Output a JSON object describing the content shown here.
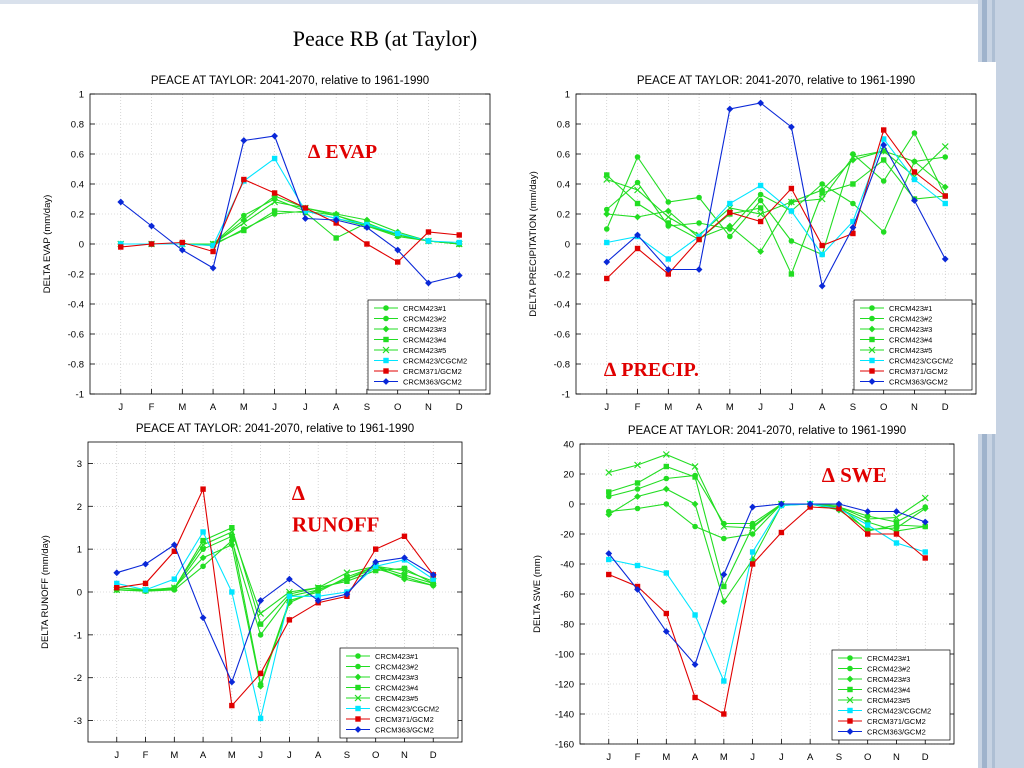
{
  "slide": {
    "title": "Peace RB (at Taylor)"
  },
  "colors": {
    "green": "#22dd22",
    "cyan": "#00e5ff",
    "red": "#e00000",
    "blue": "#0a28d8",
    "annotation": "#e00000"
  },
  "chart_data": [
    {
      "type": "line",
      "title": "PEACE AT TAYLOR: 2041-2070, relative to 1961-1990",
      "ylabel": "DELTA EVAP (mm/day)",
      "annotation": "∆ EVAP",
      "categories": [
        "J",
        "F",
        "M",
        "A",
        "M",
        "J",
        "J",
        "A",
        "S",
        "O",
        "N",
        "D"
      ],
      "ylim": [
        -1,
        1
      ],
      "yticks": [
        -1,
        -0.8,
        -0.6,
        -0.4,
        -0.2,
        0,
        0.2,
        0.4,
        0.6,
        0.8,
        1
      ],
      "ytick_labels": [
        "-1",
        "-0.8",
        "-0.6",
        "-0.4",
        "-0.2",
        "0",
        "0.2",
        "0.4",
        "0.6",
        "0.8",
        "1"
      ],
      "grid": true,
      "legend_position": "bottom-right",
      "series": [
        {
          "name": "CRCM423#1",
          "color": "green",
          "marker": "circle",
          "values": [
            0.0,
            0.0,
            0.0,
            0.0,
            0.19,
            0.3,
            0.22,
            0.19,
            0.13,
            0.06,
            0.02,
            0.0
          ]
        },
        {
          "name": "CRCM423#2",
          "color": "green",
          "marker": "circle",
          "values": [
            0.0,
            0.0,
            0.0,
            -0.01,
            0.1,
            0.2,
            0.22,
            0.17,
            0.12,
            0.05,
            0.02,
            0.0
          ]
        },
        {
          "name": "CRCM423#3",
          "color": "green",
          "marker": "diamond",
          "values": [
            0.0,
            0.0,
            0.0,
            0.0,
            0.16,
            0.32,
            0.24,
            0.2,
            0.16,
            0.08,
            0.02,
            0.0
          ]
        },
        {
          "name": "CRCM423#4",
          "color": "green",
          "marker": "square",
          "values": [
            0.0,
            0.0,
            0.0,
            0.0,
            0.09,
            0.22,
            0.21,
            0.04,
            0.14,
            0.06,
            0.02,
            0.0
          ]
        },
        {
          "name": "CRCM423#5",
          "color": "green",
          "marker": "x",
          "values": [
            0.0,
            0.0,
            0.0,
            0.0,
            0.14,
            0.28,
            0.24,
            0.19,
            0.12,
            0.06,
            0.02,
            0.0
          ]
        },
        {
          "name": "CRCM423/CGCM2",
          "color": "cyan",
          "marker": "square",
          "values": [
            0.0,
            0.0,
            0.0,
            -0.01,
            0.42,
            0.57,
            0.22,
            0.17,
            0.13,
            0.07,
            0.02,
            0.01
          ]
        },
        {
          "name": "CRCM371/GCM2",
          "color": "red",
          "marker": "square",
          "values": [
            -0.02,
            0.0,
            0.01,
            -0.05,
            0.43,
            0.34,
            0.24,
            0.14,
            0.0,
            -0.12,
            0.08,
            0.06
          ]
        },
        {
          "name": "CRCM363/GCM2",
          "color": "blue",
          "marker": "diamond",
          "values": [
            0.28,
            0.12,
            -0.04,
            -0.16,
            0.69,
            0.72,
            0.17,
            0.16,
            0.11,
            -0.04,
            -0.26,
            -0.21
          ]
        }
      ]
    },
    {
      "type": "line",
      "title": "PEACE AT TAYLOR: 2041-2070, relative to 1961-1990",
      "ylabel": "DELTA PRECIPITATION (mm/day)",
      "annotation": "∆ PRECIP.",
      "categories": [
        "J",
        "F",
        "M",
        "A",
        "M",
        "J",
        "J",
        "A",
        "S",
        "O",
        "N",
        "D"
      ],
      "ylim": [
        -1,
        1
      ],
      "yticks": [
        -1,
        -0.8,
        -0.6,
        -0.4,
        -0.2,
        0,
        0.2,
        0.4,
        0.6,
        0.8,
        1
      ],
      "ytick_labels": [
        "-1",
        "-0.8",
        "-0.6",
        "-0.4",
        "-0.2",
        "0",
        "0.2",
        "0.4",
        "0.6",
        "0.8",
        "1"
      ],
      "grid": true,
      "legend_position": "bottom-right",
      "series": [
        {
          "name": "CRCM423#1",
          "color": "green",
          "marker": "circle",
          "values": [
            0.23,
            0.41,
            0.12,
            0.14,
            0.1,
            0.33,
            0.22,
            0.4,
            0.27,
            0.08,
            0.55,
            0.58
          ]
        },
        {
          "name": "CRCM423#2",
          "color": "green",
          "marker": "circle",
          "values": [
            0.1,
            0.58,
            0.28,
            0.31,
            0.05,
            0.29,
            0.02,
            -0.07,
            0.6,
            0.42,
            0.74,
            0.32
          ]
        },
        {
          "name": "CRCM423#3",
          "color": "green",
          "marker": "diamond",
          "values": [
            0.2,
            0.18,
            0.22,
            0.04,
            0.12,
            -0.05,
            0.28,
            0.36,
            0.56,
            0.62,
            0.55,
            0.38
          ]
        },
        {
          "name": "CRCM423#4",
          "color": "green",
          "marker": "square",
          "values": [
            0.46,
            0.27,
            0.14,
            0.03,
            0.2,
            0.24,
            -0.2,
            0.34,
            0.4,
            0.56,
            0.3,
            0.32
          ]
        },
        {
          "name": "CRCM423#5",
          "color": "green",
          "marker": "x",
          "values": [
            0.43,
            0.36,
            0.18,
            0.06,
            0.24,
            0.2,
            0.28,
            0.3,
            0.58,
            0.62,
            0.45,
            0.65
          ]
        },
        {
          "name": "CRCM423/CGCM2",
          "color": "cyan",
          "marker": "square",
          "values": [
            0.01,
            0.05,
            -0.1,
            0.05,
            0.27,
            0.39,
            0.22,
            -0.07,
            0.15,
            0.7,
            0.43,
            0.27
          ]
        },
        {
          "name": "CRCM371/GCM2",
          "color": "red",
          "marker": "square",
          "values": [
            -0.23,
            -0.03,
            -0.2,
            0.03,
            0.21,
            0.15,
            0.37,
            -0.01,
            0.07,
            0.76,
            0.48,
            0.32
          ]
        },
        {
          "name": "CRCM363/GCM2",
          "color": "blue",
          "marker": "diamond",
          "values": [
            -0.12,
            0.06,
            -0.17,
            -0.17,
            0.9,
            0.94,
            0.78,
            -0.28,
            0.11,
            0.66,
            0.29,
            -0.1
          ]
        }
      ]
    },
    {
      "type": "line",
      "title": "PEACE AT TAYLOR: 2041-2070, relative to 1961-1990",
      "ylabel": "DELTA RUNOFF (mm/day)",
      "annotation": "∆ RUNOFF",
      "categories": [
        "J",
        "F",
        "M",
        "A",
        "M",
        "J",
        "J",
        "A",
        "S",
        "O",
        "N",
        "D"
      ],
      "ylim": [
        -3.5,
        3.5
      ],
      "yticks": [
        -3,
        -2,
        -1,
        0,
        1,
        2,
        3
      ],
      "ytick_labels": [
        "-3",
        "-2",
        "-1",
        "0",
        "1",
        "2",
        "3"
      ],
      "grid": true,
      "legend_position": "bottom-right",
      "series": [
        {
          "name": "CRCM423#1",
          "color": "green",
          "marker": "circle",
          "values": [
            0.05,
            0.04,
            0.07,
            1.0,
            1.3,
            -2.15,
            -0.2,
            0.0,
            0.35,
            0.6,
            0.4,
            0.2
          ]
        },
        {
          "name": "CRCM423#2",
          "color": "green",
          "marker": "circle",
          "values": [
            0.05,
            0.02,
            0.05,
            0.6,
            1.2,
            -1.0,
            -0.1,
            0.05,
            0.3,
            0.55,
            0.35,
            0.15
          ]
        },
        {
          "name": "CRCM423#3",
          "color": "green",
          "marker": "diamond",
          "values": [
            0.05,
            0.03,
            0.1,
            0.8,
            1.1,
            -2.2,
            -0.25,
            0.05,
            0.3,
            0.6,
            0.3,
            0.15
          ]
        },
        {
          "name": "CRCM423#4",
          "color": "green",
          "marker": "square",
          "values": [
            0.1,
            0.05,
            0.08,
            1.2,
            1.5,
            -0.75,
            -0.05,
            0.1,
            0.25,
            0.5,
            0.55,
            0.2
          ]
        },
        {
          "name": "CRCM423#5",
          "color": "green",
          "marker": "x",
          "values": [
            0.05,
            0.04,
            0.1,
            1.1,
            1.4,
            -0.5,
            0.0,
            0.1,
            0.45,
            0.6,
            0.5,
            0.25
          ]
        },
        {
          "name": "CRCM423/CGCM2",
          "color": "cyan",
          "marker": "square",
          "values": [
            0.2,
            0.05,
            0.3,
            1.4,
            0.0,
            -2.95,
            -0.1,
            -0.1,
            0.0,
            0.6,
            0.75,
            0.3
          ]
        },
        {
          "name": "CRCM371/GCM2",
          "color": "red",
          "marker": "square",
          "values": [
            0.1,
            0.2,
            0.95,
            2.4,
            -2.65,
            -1.9,
            -0.65,
            -0.25,
            -0.1,
            1.0,
            1.3,
            0.4
          ]
        },
        {
          "name": "CRCM363/GCM2",
          "color": "blue",
          "marker": "diamond",
          "values": [
            0.45,
            0.65,
            1.1,
            -0.6,
            -2.1,
            -0.2,
            0.3,
            -0.2,
            -0.05,
            0.7,
            0.8,
            0.4
          ]
        }
      ]
    },
    {
      "type": "line",
      "title": "PEACE AT TAYLOR: 2041-2070, relative to 1961-1990",
      "ylabel": "DELTA SWE (mm)",
      "annotation": "∆ SWE",
      "categories": [
        "J",
        "F",
        "M",
        "A",
        "M",
        "J",
        "J",
        "A",
        "S",
        "O",
        "N",
        "D"
      ],
      "ylim": [
        -160,
        40
      ],
      "yticks": [
        -160,
        -140,
        -120,
        -100,
        -80,
        -60,
        -40,
        -20,
        0,
        20,
        40
      ],
      "ytick_labels": [
        "-160",
        "-140",
        "-120",
        "-100",
        "-80",
        "-60",
        "-40",
        "-20",
        "0",
        "20",
        "40"
      ],
      "grid": true,
      "legend_position": "bottom-right",
      "series": [
        {
          "name": "CRCM423#1",
          "color": "green",
          "marker": "circle",
          "values": [
            5,
            10,
            17,
            19,
            -13,
            -13,
            0,
            0,
            -2,
            -8,
            -12,
            -2
          ]
        },
        {
          "name": "CRCM423#2",
          "color": "green",
          "marker": "circle",
          "values": [
            -5,
            -3,
            0,
            -15,
            -23,
            -20,
            0,
            0,
            -3,
            -12,
            -18,
            -15
          ]
        },
        {
          "name": "CRCM423#3",
          "color": "green",
          "marker": "diamond",
          "values": [
            -7,
            5,
            10,
            0,
            -65,
            -37,
            -1,
            0,
            -4,
            -17,
            -16,
            -3
          ]
        },
        {
          "name": "CRCM423#4",
          "color": "green",
          "marker": "square",
          "values": [
            8,
            14,
            25,
            18,
            -55,
            -15,
            0,
            0,
            -1,
            -18,
            -14,
            -15
          ]
        },
        {
          "name": "CRCM423#5",
          "color": "green",
          "marker": "x",
          "values": [
            21,
            26,
            33,
            25,
            -15,
            -16,
            0,
            0,
            -2,
            -10,
            -9,
            4
          ]
        },
        {
          "name": "CRCM423/CGCM2",
          "color": "cyan",
          "marker": "square",
          "values": [
            -37,
            -41,
            -46,
            -74,
            -118,
            -32,
            -1,
            0,
            -3,
            -14,
            -26,
            -32
          ]
        },
        {
          "name": "CRCM371/GCM2",
          "color": "red",
          "marker": "square",
          "values": [
            -47,
            -55,
            -73,
            -129,
            -140,
            -40,
            -19,
            -2,
            -3,
            -20,
            -20,
            -36
          ]
        },
        {
          "name": "CRCM363/GCM2",
          "color": "blue",
          "marker": "diamond",
          "values": [
            -33,
            -57,
            -85,
            -107,
            -47,
            -2,
            0,
            0,
            0,
            -5,
            -5,
            -12
          ]
        }
      ]
    }
  ]
}
